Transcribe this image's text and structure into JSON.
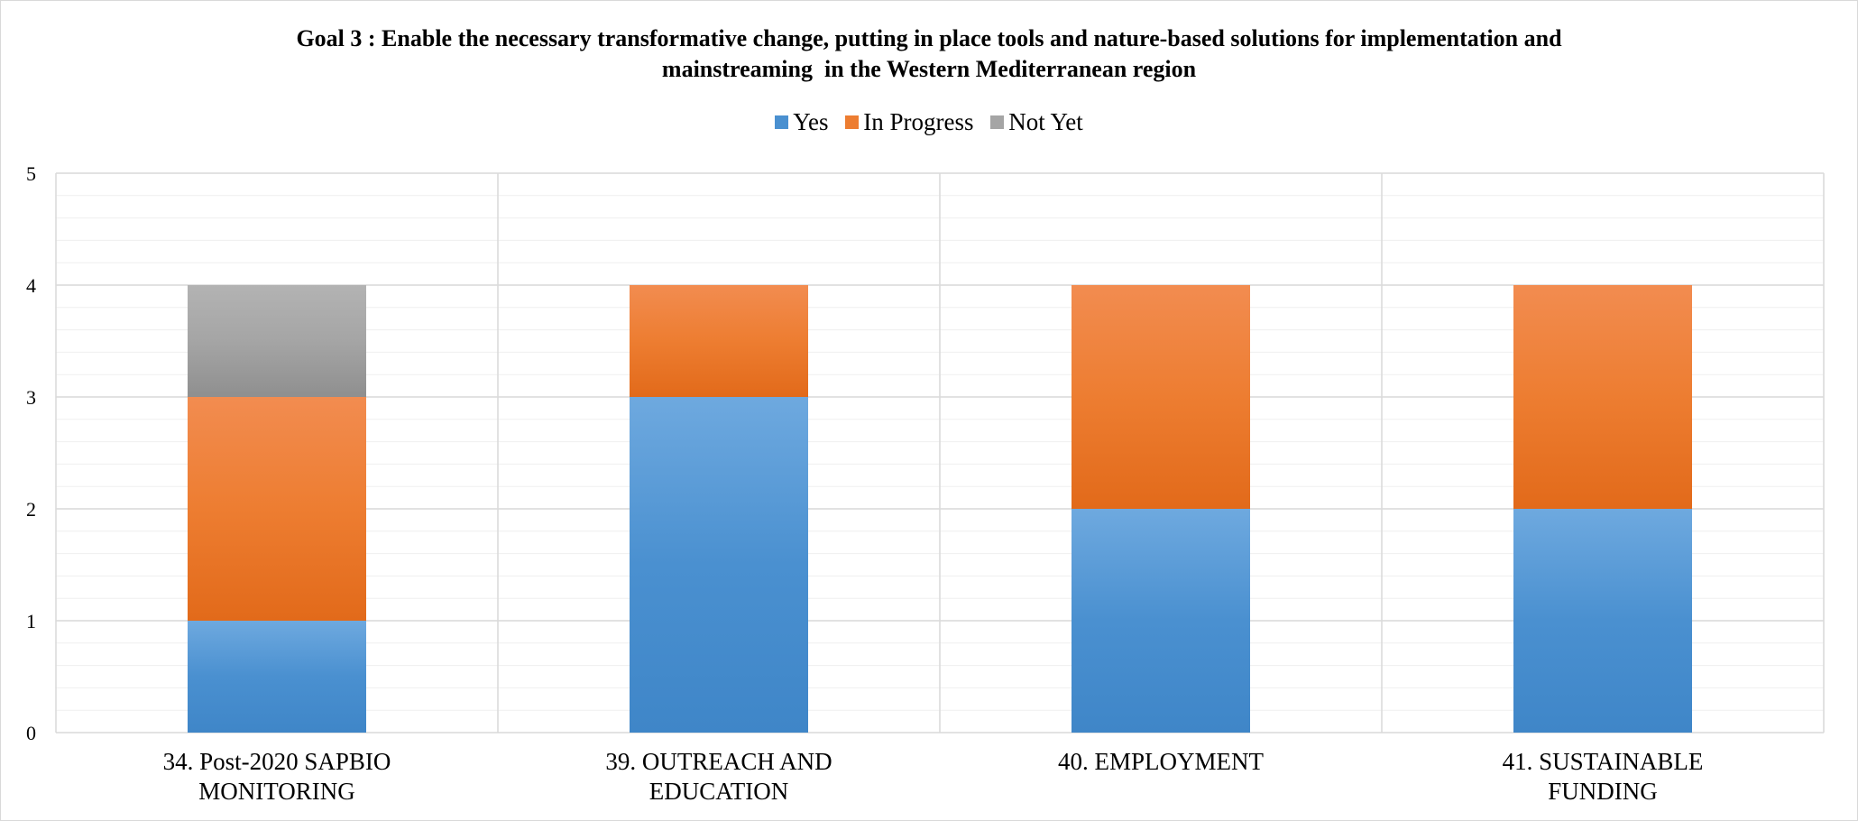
{
  "chart_data": {
    "type": "bar",
    "stacked": true,
    "title_lines": [
      "Goal 3 : Enable the necessary transformative change, putting in place tools and nature-based solutions for implementation and",
      "mainstreaming  in the Western Mediterranean region"
    ],
    "categories": [
      [
        "34. Post-2020 SAPBIO",
        "MONITORING"
      ],
      [
        "39. OUTREACH AND",
        "EDUCATION"
      ],
      [
        "40. EMPLOYMENT"
      ],
      [
        "41. SUSTAINABLE",
        "FUNDING"
      ]
    ],
    "series": [
      {
        "name": "Yes",
        "values": [
          1,
          3,
          2,
          2
        ],
        "color": "#4a90d0",
        "color_light": "#6ea9df",
        "color_dark": "#3f86c8"
      },
      {
        "name": "In Progress",
        "values": [
          2,
          1,
          2,
          2
        ],
        "color": "#ed7d31",
        "color_light": "#f28c50",
        "color_dark": "#e26a1a"
      },
      {
        "name": "Not Yet",
        "values": [
          1,
          0,
          0,
          0
        ],
        "color": "#a5a5a5",
        "color_light": "#b3b3b3",
        "color_dark": "#8f8f8f"
      }
    ],
    "ylim": [
      0,
      5
    ],
    "yticks": [
      0,
      1,
      2,
      3,
      4,
      5
    ],
    "minor_gridlines": true,
    "legend_position": "top"
  }
}
